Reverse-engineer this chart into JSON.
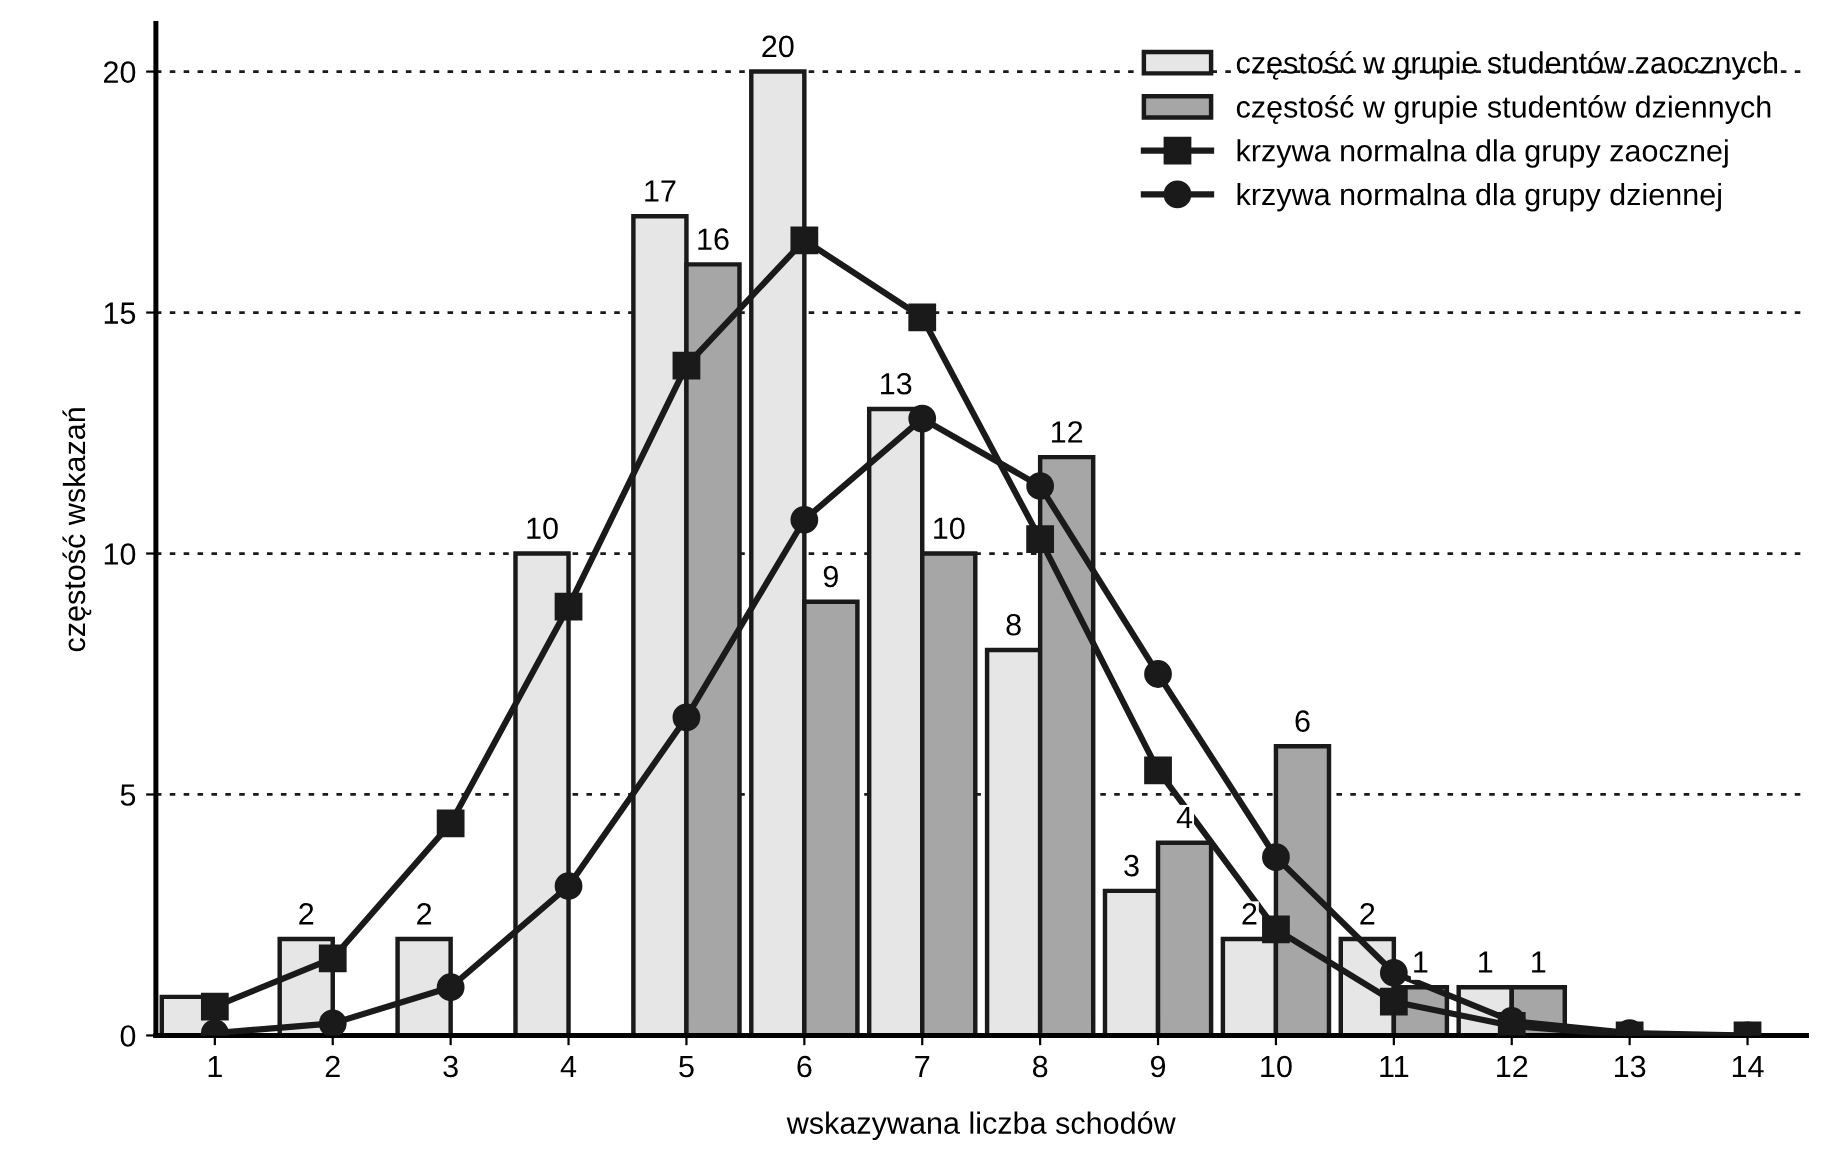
{
  "chart_data": {
    "type": "bar",
    "xlabel": "wskazywana liczba schodów",
    "ylabel": "częstość wskazań",
    "categories": [
      "1",
      "2",
      "3",
      "4",
      "5",
      "6",
      "7",
      "8",
      "9",
      "10",
      "11",
      "12",
      "13",
      "14"
    ],
    "series": [
      {
        "name": "częstość w grupie studentów zaocznych",
        "color": "#e6e6e6",
        "values": [
          0.8,
          2,
          2,
          10,
          17,
          20,
          13,
          8,
          3,
          2,
          2,
          1,
          null,
          null
        ],
        "value_labels": [
          null,
          "2",
          "2",
          "10",
          "17",
          "20",
          "13",
          "8",
          "3",
          "2",
          "2",
          "1",
          null,
          null
        ]
      },
      {
        "name": "częstość w grupie studentów dziennych",
        "color": "#a6a6a6",
        "values": [
          null,
          null,
          null,
          null,
          16,
          9,
          10,
          12,
          4,
          6,
          1,
          1,
          null,
          null
        ],
        "value_labels": [
          null,
          null,
          null,
          null,
          "16",
          "9",
          "10",
          "12",
          "4",
          "6",
          "1",
          "1",
          null,
          null
        ]
      },
      {
        "name": "krzywa normalna dla grupy zaocznej",
        "type": "line",
        "color": "#1a1a1a",
        "marker": "square",
        "values": [
          0.6,
          1.6,
          4.4,
          8.9,
          13.9,
          16.5,
          14.9,
          10.3,
          5.5,
          2.2,
          0.7,
          0.2,
          0.0,
          0.0
        ]
      },
      {
        "name": "krzywa normalna dla grupy dziennej",
        "type": "line",
        "color": "#1a1a1a",
        "marker": "circle",
        "values": [
          0.05,
          0.25,
          1.0,
          3.1,
          6.6,
          10.7,
          12.8,
          11.4,
          7.5,
          3.7,
          1.3,
          0.3,
          0.05,
          0.0
        ]
      }
    ],
    "ylim": [
      0,
      21
    ],
    "yticks": [
      0,
      5,
      10,
      15,
      20
    ],
    "grid": "y",
    "legend": "top right"
  }
}
